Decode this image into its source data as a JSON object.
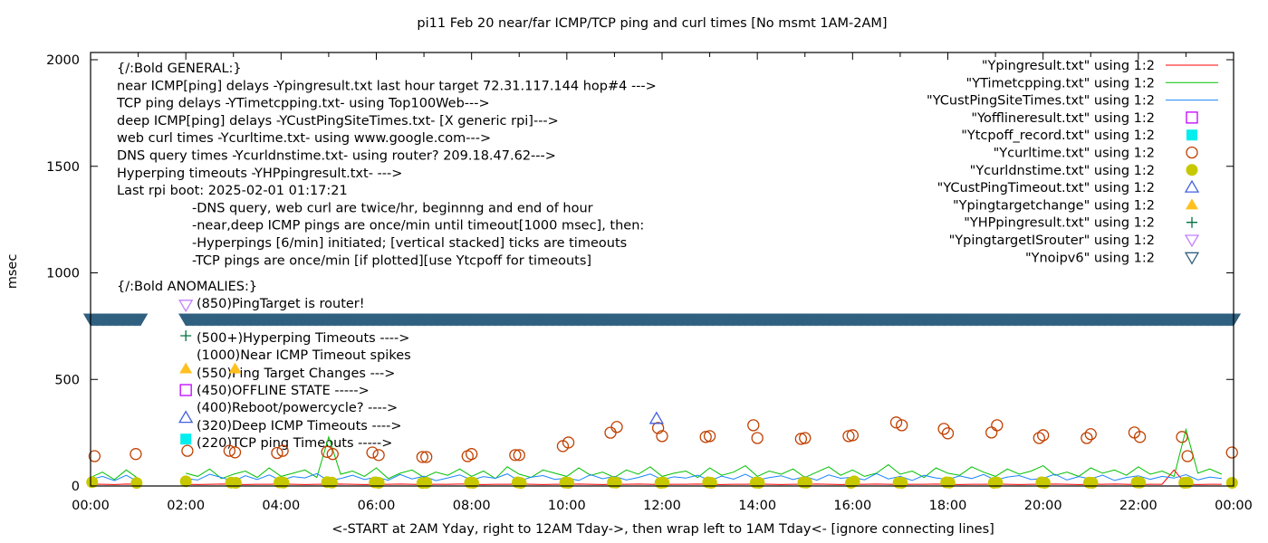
{
  "chart_data": {
    "type": "line",
    "title": "pi11 Feb 20  near/far ICMP/TCP ping and curl times [No msmt 1AM-2AM]",
    "xlabel": "<-START at 2AM Yday, right to 12AM Tday->, then wrap left to 1AM Tday<- [ignore connecting lines]",
    "ylabel": "msec",
    "xlim": [
      "00:00",
      "24:00"
    ],
    "ylim": [
      0,
      2050
    ],
    "x_tick_labels": [
      "00:00",
      "02:00",
      "04:00",
      "06:00",
      "08:00",
      "10:00",
      "12:00",
      "14:00",
      "16:00",
      "18:00",
      "20:00",
      "22:00",
      "00:00"
    ],
    "y_ticks": [
      0,
      500,
      1000,
      1500,
      2000
    ],
    "grid": false,
    "legend_placement": "top-right",
    "sample_interval_minutes": 15,
    "series": [
      {
        "name": "\"Ypingresult.txt\" using 1:2",
        "style": "line",
        "color": "#ff0000",
        "values": [
          8,
          8,
          7,
          9,
          8,
          null,
          null,
          null,
          8,
          7,
          8,
          9,
          8,
          7,
          8,
          8,
          9,
          8,
          7,
          8,
          8,
          9,
          8,
          7,
          8,
          8,
          9,
          8,
          7,
          8,
          8,
          9,
          8,
          7,
          8,
          8,
          9,
          8,
          7,
          8,
          8,
          9,
          8,
          7,
          8,
          8,
          9,
          8,
          7,
          8,
          8,
          9,
          8,
          7,
          8,
          8,
          9,
          8,
          7,
          8,
          8,
          9,
          8,
          7,
          8,
          8,
          9,
          8,
          7,
          8,
          8,
          9,
          8,
          7,
          8,
          8,
          9,
          8,
          7,
          8,
          8,
          9,
          8,
          7,
          8,
          8,
          9,
          8,
          7,
          8,
          8,
          75,
          8,
          7,
          8,
          8
        ]
      },
      {
        "name": "\"YTimetcpping.txt\" using 1:2",
        "style": "line",
        "color": "#00c000",
        "values": [
          40,
          65,
          30,
          75,
          35,
          null,
          null,
          null,
          60,
          45,
          80,
          35,
          55,
          70,
          40,
          85,
          45,
          60,
          75,
          40,
          230,
          55,
          70,
          45,
          85,
          35,
          60,
          75,
          40,
          65,
          50,
          80,
          45,
          70,
          35,
          90,
          55,
          40,
          75,
          60,
          45,
          85,
          50,
          65,
          40,
          75,
          55,
          90,
          45,
          60,
          70,
          40,
          85,
          50,
          65,
          95,
          45,
          70,
          55,
          80,
          40,
          65,
          90,
          50,
          75,
          45,
          60,
          100,
          55,
          70,
          40,
          85,
          60,
          50,
          90,
          65,
          45,
          80,
          55,
          70,
          95,
          50,
          65,
          45,
          85,
          60,
          75,
          50,
          90,
          55,
          70,
          45,
          265,
          60,
          80,
          55
        ]
      },
      {
        "name": "\"YCustPingSiteTimes.txt\" using 1:2",
        "style": "line",
        "color": "#1a84ff",
        "values": [
          30,
          45,
          25,
          50,
          20,
          null,
          null,
          null,
          35,
          28,
          55,
          40,
          22,
          48,
          30,
          52,
          26,
          44,
          38,
          58,
          24,
          35,
          50,
          30,
          42,
          27,
          54,
          33,
          46,
          25,
          38,
          52,
          29,
          44,
          36,
          57,
          23,
          41,
          49,
          31,
          38,
          26,
          53,
          34,
          45,
          28,
          40,
          56,
          30,
          43,
          37,
          51,
          25,
          46,
          32,
          55,
          28,
          39,
          48,
          30,
          44,
          27,
          52,
          36,
          41,
          29,
          58,
          33,
          45,
          26,
          50,
          38,
          31,
          47,
          35,
          54,
          27,
          42,
          49,
          30,
          36,
          55,
          28,
          44,
          33,
          51,
          26,
          40,
          48,
          31,
          45,
          37,
          53,
          29,
          42,
          35
        ]
      },
      {
        "name": "\"Yofflineresult.txt\" using 1:2",
        "style": "open-square",
        "color": "#c000ff",
        "points": [
          [
            "02:00",
            450
          ]
        ]
      },
      {
        "name": "\"Ytcpoff_record.txt\" using 1:2",
        "style": "filled-square",
        "color": "#00eeee",
        "points": [
          [
            "02:00",
            220
          ]
        ]
      },
      {
        "name": "\"Ycurltime.txt\" using 1:2",
        "style": "open-circle",
        "color": "#c04000",
        "points": [
          [
            "00:05",
            140
          ],
          [
            "00:57",
            150
          ],
          [
            "02:02",
            165
          ],
          [
            "02:55",
            165
          ],
          [
            "03:02",
            158
          ],
          [
            "03:55",
            155
          ],
          [
            "04:02",
            165
          ],
          [
            "04:58",
            160
          ],
          [
            "05:05",
            150
          ],
          [
            "05:55",
            157
          ],
          [
            "06:03",
            145
          ],
          [
            "06:58",
            136
          ],
          [
            "07:03",
            136
          ],
          [
            "07:55",
            140
          ],
          [
            "08:00",
            150
          ],
          [
            "08:55",
            145
          ],
          [
            "09:00",
            145
          ],
          [
            "09:55",
            187
          ],
          [
            "10:02",
            204
          ],
          [
            "10:55",
            250
          ],
          [
            "11:03",
            277
          ],
          [
            "11:55",
            272
          ],
          [
            "12:00",
            234
          ],
          [
            "12:55",
            230
          ],
          [
            "13:00",
            234
          ],
          [
            "13:55",
            285
          ],
          [
            "14:00",
            225
          ],
          [
            "14:55",
            221
          ],
          [
            "15:00",
            225
          ],
          [
            "15:55",
            234
          ],
          [
            "16:00",
            238
          ],
          [
            "16:55",
            298
          ],
          [
            "17:02",
            285
          ],
          [
            "17:55",
            268
          ],
          [
            "18:00",
            247
          ],
          [
            "18:55",
            251
          ],
          [
            "19:02",
            285
          ],
          [
            "19:55",
            225
          ],
          [
            "20:00",
            238
          ],
          [
            "20:55",
            225
          ],
          [
            "21:00",
            243
          ],
          [
            "21:55",
            251
          ],
          [
            "22:02",
            230
          ],
          [
            "22:55",
            230
          ],
          [
            "23:02",
            140
          ],
          [
            "23:58",
            157
          ]
        ]
      },
      {
        "name": "\"Ycurldnstime.txt\" using 1:2",
        "style": "filled-circle",
        "color": "#c8c800",
        "points": [
          [
            "00:02",
            18
          ],
          [
            "00:58",
            14
          ],
          [
            "02:00",
            22
          ],
          [
            "02:57",
            16
          ],
          [
            "03:03",
            15
          ],
          [
            "03:58",
            17
          ],
          [
            "04:03",
            16
          ],
          [
            "04:58",
            18
          ],
          [
            "05:04",
            16
          ],
          [
            "05:58",
            17
          ],
          [
            "06:03",
            15
          ],
          [
            "06:58",
            14
          ],
          [
            "07:03",
            15
          ],
          [
            "07:58",
            16
          ],
          [
            "08:02",
            15
          ],
          [
            "08:58",
            17
          ],
          [
            "09:02",
            14
          ],
          [
            "09:58",
            16
          ],
          [
            "10:02",
            15
          ],
          [
            "10:58",
            17
          ],
          [
            "11:02",
            16
          ],
          [
            "11:58",
            15
          ],
          [
            "12:02",
            16
          ],
          [
            "12:58",
            17
          ],
          [
            "13:02",
            15
          ],
          [
            "13:58",
            16
          ],
          [
            "14:02",
            15
          ],
          [
            "14:58",
            17
          ],
          [
            "15:02",
            16
          ],
          [
            "15:58",
            15
          ],
          [
            "16:02",
            22
          ],
          [
            "16:58",
            16
          ],
          [
            "17:02",
            15
          ],
          [
            "17:58",
            17
          ],
          [
            "18:02",
            16
          ],
          [
            "18:58",
            15
          ],
          [
            "19:02",
            16
          ],
          [
            "19:58",
            17
          ],
          [
            "20:02",
            15
          ],
          [
            "20:58",
            16
          ],
          [
            "21:02",
            15
          ],
          [
            "21:58",
            17
          ],
          [
            "22:02",
            16
          ],
          [
            "22:58",
            15
          ],
          [
            "23:02",
            16
          ],
          [
            "23:58",
            15
          ]
        ]
      },
      {
        "name": "\"YCustPingTimeout.txt\" using 1:2",
        "style": "open-triangle-up",
        "color": "#4060e0",
        "points": [
          [
            "02:00",
            320
          ],
          [
            "11:53",
            315
          ]
        ]
      },
      {
        "name": "\"Ypingtargetchange\" using 1:2",
        "style": "filled-triangle-up",
        "color": "#ffc020",
        "points": [
          [
            "02:00",
            550
          ],
          [
            "03:02",
            550
          ]
        ]
      },
      {
        "name": "\"YHPpingresult.txt\" using 1:2",
        "style": "plus",
        "color": "#007040",
        "points": [
          [
            "02:00",
            705
          ]
        ]
      },
      {
        "name": "\"YpingtargetISrouter\" using 1:2",
        "style": "open-triangle-down",
        "color": "#c080ff",
        "points": [
          [
            "02:00",
            850
          ]
        ]
      },
      {
        "name": "\"Ynoipv6\" using 1:2",
        "style": "open-triangle-down",
        "color": "#306080",
        "value": 785,
        "every_minute_ranges": [
          [
            "00:00",
            "01:03"
          ],
          [
            "02:00",
            "24:00"
          ]
        ]
      }
    ],
    "annotations": {
      "general": [
        "{/:Bold GENERAL:}",
        "near ICMP[ping] delays -Ypingresult.txt last hour target 72.31.117.144 hop#4 --->",
        "TCP ping delays -YTimetcpping.txt- using Top100Web--->",
        "deep ICMP[ping] delays -YCustPingSiteTimes.txt- [X generic rpi]--->",
        "web curl times -Ycurltime.txt- using www.google.com--->",
        "DNS query times -Ycurldnstime.txt- using router? 209.18.47.62--->",
        "Hyperping timeouts -YHPpingresult.txt- --->",
        "Last rpi boot: 2025-02-01 01:17:21"
      ],
      "notes": [
        "-DNS query, web curl are twice/hr, beginnng and end of hour",
        "-near,deep ICMP pings are once/min until timeout[1000 msec], then:",
        "  -Hyperpings [6/min] initiated; [vertical stacked] ticks are timeouts",
        "-TCP pings are once/min [if plotted][use Ytcpoff for timeouts]"
      ],
      "anomalies_heading": "{/:Bold ANOMALIES:}",
      "anomalies": [
        "(850)PingTarget is router!",
        "(500+)Hyperping Timeouts ---->",
        "(1000)Near ICMP Timeout spikes",
        "(550)Ping Target Changes --->",
        "(450)OFFLINE STATE ----->",
        "(400)Reboot/powercycle? ---->",
        "(320)Deep ICMP Timeouts ---->",
        "(220)TCP ping Timeouts ----->"
      ]
    }
  }
}
